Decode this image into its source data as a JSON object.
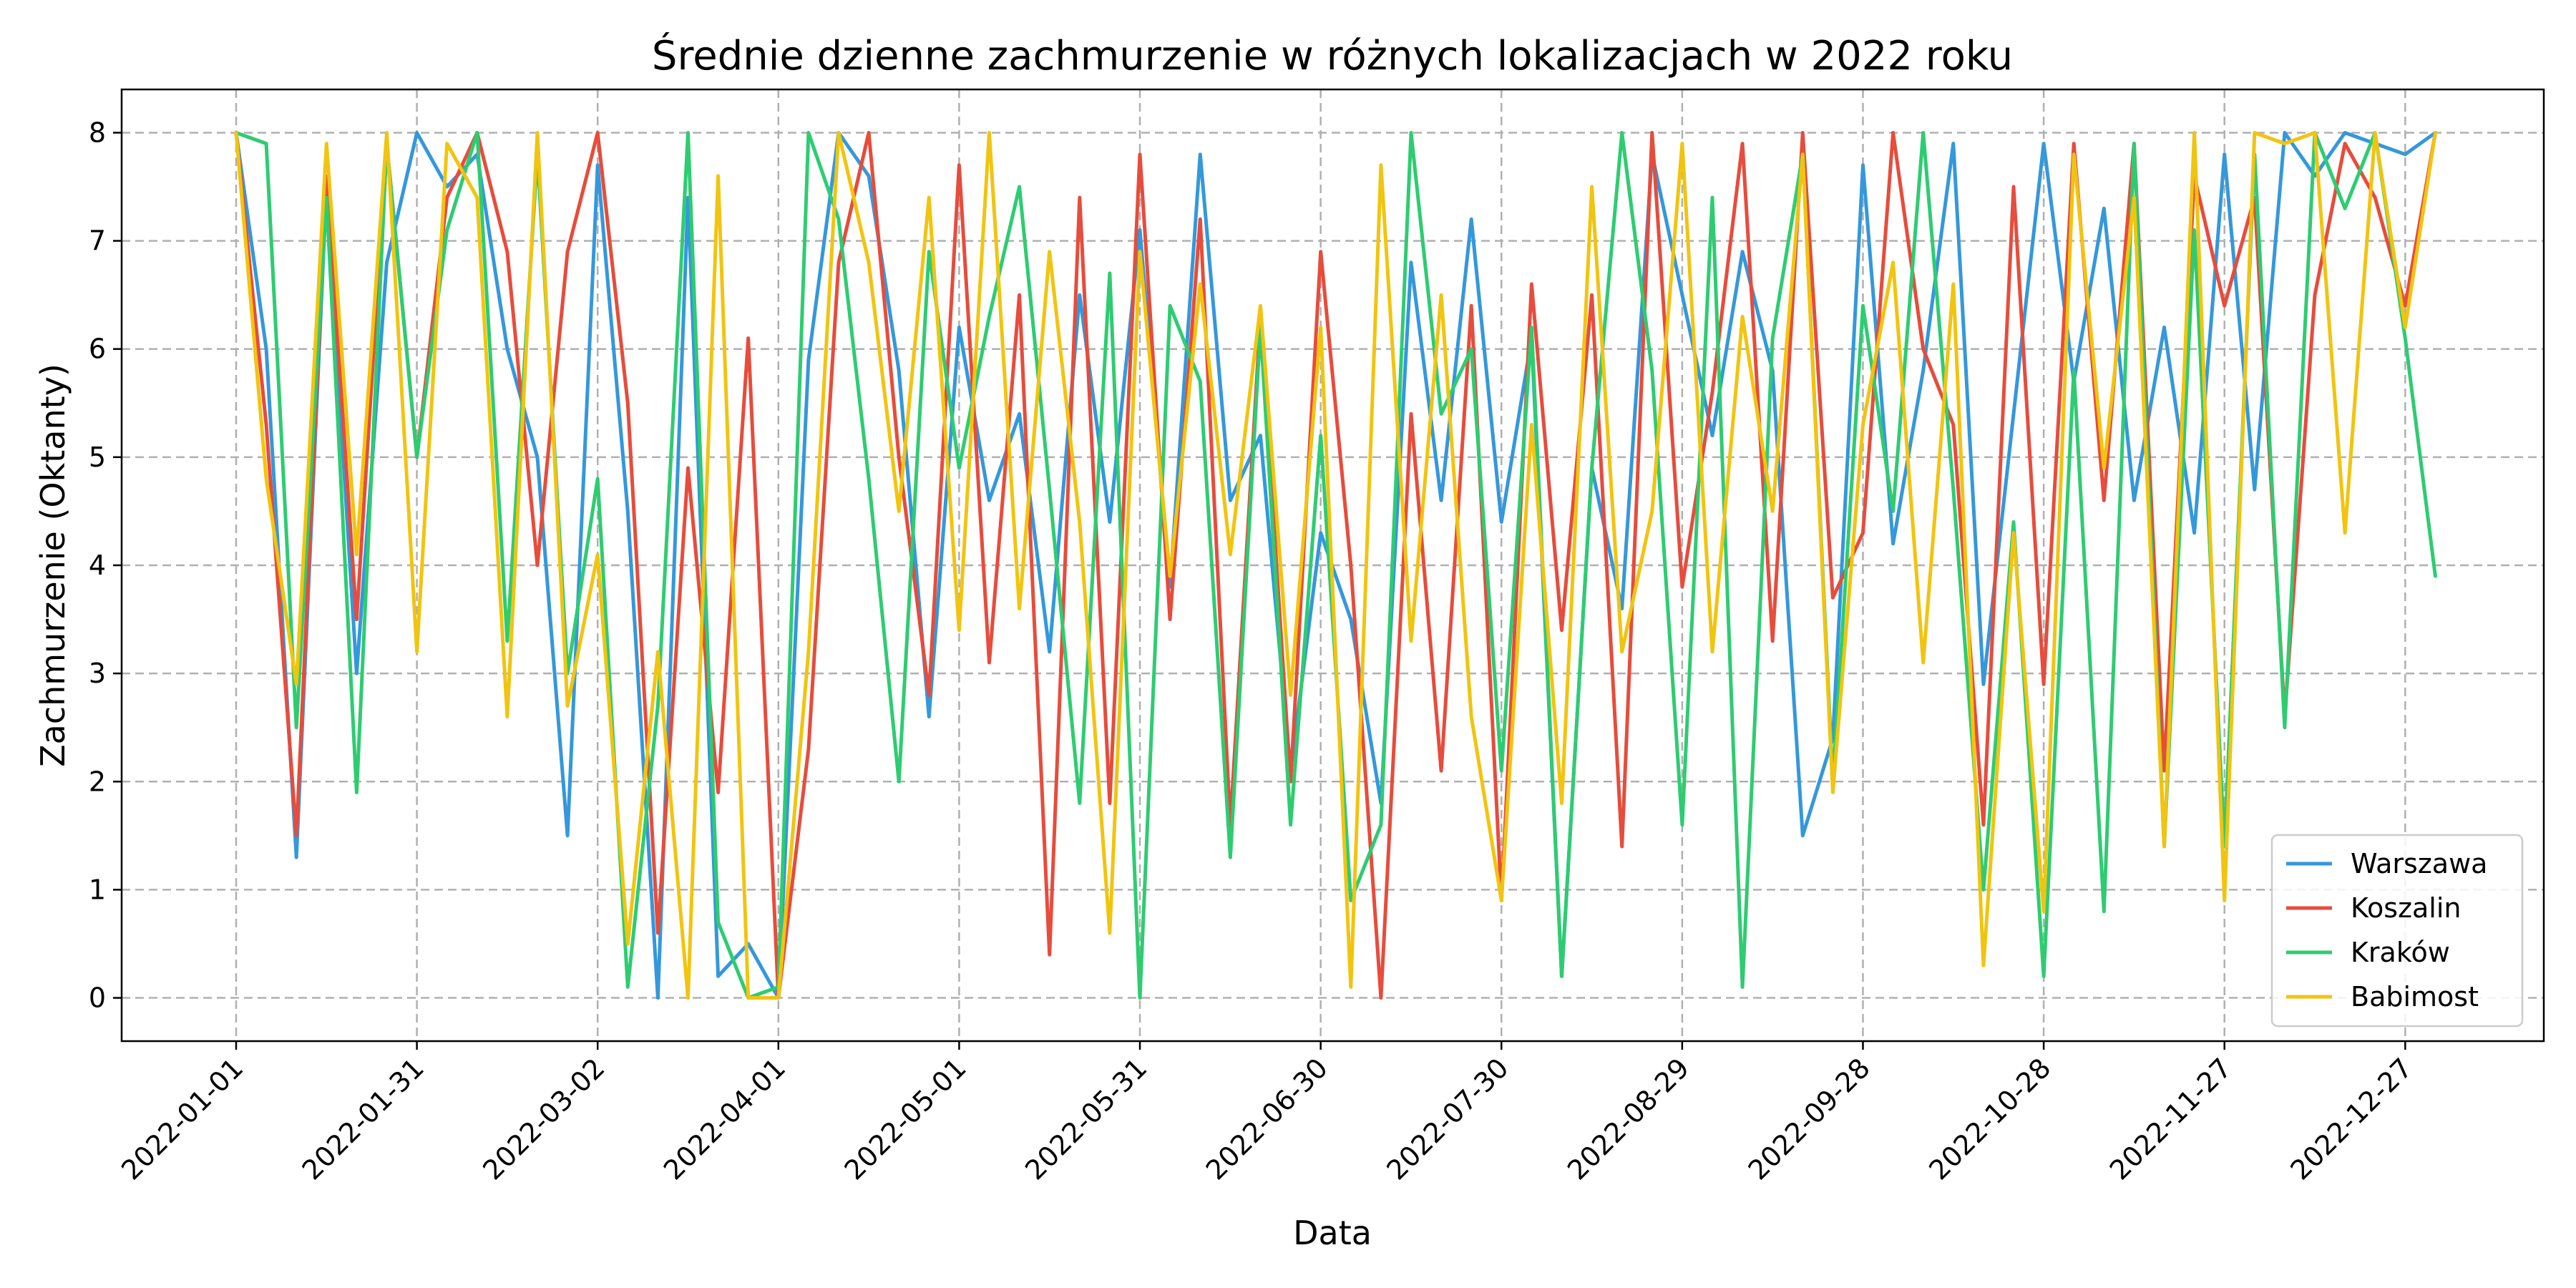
{
  "chart_data": {
    "type": "line",
    "title": "Średnie dzienne zachmurzenie w różnych lokalizacjach w 2022 roku",
    "xlabel": "Data",
    "ylabel": "Zachmurzenie (Oktanty)",
    "x_range": [
      "2022-01-01",
      "2022-12-31"
    ],
    "xlim": [
      "2021-12-13",
      "2023-01-19"
    ],
    "ylim": [
      -0.4,
      8.4
    ],
    "x_ticks": [
      "2022-01-01",
      "2022-01-31",
      "2022-03-02",
      "2022-04-01",
      "2022-05-01",
      "2022-05-31",
      "2022-06-30",
      "2022-07-30",
      "2022-08-29",
      "2022-09-28",
      "2022-10-28",
      "2022-11-27",
      "2022-12-27"
    ],
    "y_ticks": [
      "0",
      "1",
      "2",
      "3",
      "4",
      "5",
      "6",
      "7",
      "8"
    ],
    "grid": true,
    "legend_position": "bottom-right",
    "x_step_days": 5,
    "series": [
      {
        "name": "Warszawa",
        "color": "#3498db",
        "values": [
          8.0,
          6.0,
          1.3,
          7.5,
          3.0,
          6.8,
          8.0,
          7.5,
          7.8,
          6.0,
          5.0,
          1.5,
          7.7,
          4.5,
          0.0,
          7.4,
          0.2,
          0.5,
          0.0,
          5.9,
          8.0,
          7.6,
          5.8,
          2.6,
          6.2,
          4.6,
          5.4,
          3.2,
          6.5,
          4.4,
          7.1,
          3.8,
          7.8,
          4.6,
          5.2,
          2.1,
          4.3,
          3.5,
          1.8,
          6.8,
          4.6,
          7.2,
          4.4,
          6.1,
          0.2,
          4.9,
          3.6,
          7.8,
          6.5,
          5.2,
          6.9,
          5.8,
          1.5,
          2.4,
          7.7,
          4.2,
          5.8,
          7.9,
          2.9,
          5.4,
          7.9,
          5.7,
          7.3,
          4.6,
          6.2,
          4.3,
          7.8,
          4.7,
          8.0,
          7.6,
          8.0,
          7.9,
          7.8,
          8.0
        ]
      },
      {
        "name": "Koszalin",
        "color": "#e74c3c",
        "values": [
          8.0,
          5.3,
          1.5,
          7.6,
          3.5,
          7.9,
          5.0,
          7.4,
          8.0,
          6.9,
          4.0,
          6.9,
          8.0,
          5.5,
          0.6,
          4.9,
          1.9,
          6.1,
          0.0,
          2.3,
          6.8,
          8.0,
          5.0,
          2.8,
          7.7,
          3.1,
          6.5,
          0.4,
          7.4,
          1.8,
          7.8,
          3.5,
          7.2,
          1.6,
          6.3,
          2.0,
          6.9,
          4.0,
          0.0,
          5.4,
          2.1,
          6.4,
          0.9,
          6.6,
          3.4,
          6.5,
          1.4,
          8.0,
          3.8,
          5.6,
          7.9,
          3.3,
          8.0,
          3.7,
          4.3,
          8.0,
          6.0,
          5.3,
          1.6,
          7.5,
          2.9,
          7.9,
          4.6,
          7.9,
          2.1,
          7.6,
          6.4,
          7.4,
          2.6,
          6.5,
          7.9,
          7.4,
          6.4,
          8.0
        ]
      },
      {
        "name": "Kraków",
        "color": "#2ecc71",
        "values": [
          8.0,
          7.9,
          2.5,
          7.4,
          1.9,
          7.9,
          5.0,
          7.1,
          8.0,
          3.3,
          7.8,
          3.0,
          4.8,
          0.1,
          2.7,
          8.0,
          0.7,
          0.0,
          0.1,
          8.0,
          7.2,
          4.8,
          2.0,
          6.9,
          4.9,
          6.3,
          7.5,
          4.7,
          1.8,
          6.7,
          0.0,
          6.4,
          5.7,
          1.3,
          6.2,
          1.6,
          5.2,
          0.9,
          1.6,
          8.0,
          5.4,
          6.0,
          2.1,
          6.2,
          0.2,
          4.9,
          8.0,
          5.8,
          1.6,
          7.4,
          0.1,
          6.1,
          7.8,
          2.0,
          6.4,
          4.5,
          8.0,
          4.7,
          1.0,
          4.4,
          0.2,
          5.8,
          0.8,
          7.9,
          1.4,
          7.1,
          1.4,
          7.8,
          2.5,
          8.0,
          7.3,
          8.0,
          6.1,
          3.9
        ]
      },
      {
        "name": "Babimost",
        "color": "#f1c40f",
        "values": [
          8.0,
          4.8,
          2.9,
          7.9,
          4.1,
          8.0,
          3.2,
          7.9,
          7.4,
          2.6,
          8.0,
          2.7,
          4.1,
          0.5,
          3.2,
          0.0,
          7.6,
          0.0,
          0.0,
          3.2,
          8.0,
          6.8,
          4.5,
          7.4,
          3.4,
          8.0,
          3.6,
          6.9,
          4.4,
          0.6,
          6.9,
          3.9,
          6.6,
          4.1,
          6.4,
          2.8,
          6.2,
          0.1,
          7.7,
          3.3,
          6.5,
          2.6,
          0.9,
          5.3,
          1.8,
          7.5,
          3.2,
          4.5,
          7.9,
          3.2,
          6.3,
          4.5,
          7.8,
          1.9,
          5.3,
          6.8,
          3.1,
          6.6,
          0.3,
          4.3,
          0.8,
          7.8,
          4.9,
          7.4,
          1.4,
          8.0,
          0.9,
          8.0,
          7.9,
          8.0,
          4.3,
          8.0,
          6.2,
          8.0
        ]
      }
    ]
  }
}
